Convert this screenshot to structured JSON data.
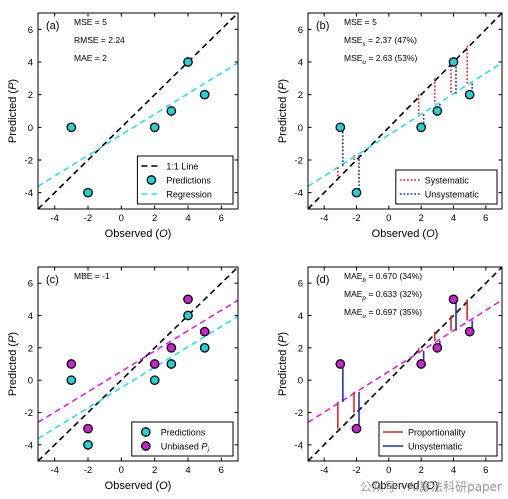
{
  "watermark": "公众号 · AI算法科研paper",
  "chart_data": [
    {
      "type": "scatter",
      "panel_label": "(a)",
      "xlabel": "Observed (O)",
      "ylabel": "Predicted (P)",
      "xlim": [
        -5,
        7
      ],
      "ylim": [
        -5,
        7
      ],
      "xticks": [
        -4,
        -2,
        0,
        2,
        4,
        6
      ],
      "yticks": [
        -4,
        -2,
        0,
        2,
        4,
        6
      ],
      "stats_text": [
        "MSE = 5",
        "RMSE = 2.24",
        "MAE = 2"
      ],
      "points": [
        {
          "name": "Predictions",
          "color": "#1fd4d8",
          "x": [
            -3,
            -2,
            2,
            3,
            4,
            5
          ],
          "y": [
            0,
            -4,
            0,
            1,
            4,
            2
          ]
        }
      ],
      "lines": [
        {
          "name": "1:1 Line",
          "color": "#000000",
          "dash": "dashed",
          "intercept": 0,
          "slope": 1
        },
        {
          "name": "Regression",
          "color": "#20e6e6",
          "dash": "dashed",
          "intercept": -0.46,
          "slope": 0.63
        }
      ],
      "error_segments": [],
      "legend": {
        "position": "bottom-right",
        "entries": [
          {
            "label": "1:1 Line",
            "kind": "line",
            "color": "#000000",
            "dash": "dashed"
          },
          {
            "label": "Predictions",
            "kind": "marker",
            "color": "#1fd4d8"
          },
          {
            "label": "Regression",
            "kind": "line",
            "color": "#20e6e6",
            "dash": "dashed"
          }
        ]
      }
    },
    {
      "type": "scatter",
      "panel_label": "(b)",
      "xlabel": "Observed (O)",
      "ylabel": "Predicted (P)",
      "xlim": [
        -5,
        7
      ],
      "ylim": [
        -5,
        7
      ],
      "xticks": [
        -4,
        -2,
        0,
        2,
        4,
        6
      ],
      "yticks": [
        -4,
        -2,
        0,
        2,
        4,
        6
      ],
      "stats_text": [
        "MSE = 5",
        "MSE_s = 2.37 (47%)",
        "MSE_u = 2.63 (53%)"
      ],
      "points": [
        {
          "name": "Predictions",
          "color": "#1fd4d8",
          "x": [
            -3,
            -2,
            2,
            3,
            4,
            5
          ],
          "y": [
            0,
            -4,
            0,
            1,
            4,
            2
          ]
        }
      ],
      "lines": [
        {
          "name": "1:1 Line",
          "color": "#000000",
          "dash": "dashed",
          "intercept": 0,
          "slope": 1
        },
        {
          "name": "Regression",
          "color": "#20e6e6",
          "dash": "dashed",
          "intercept": -0.46,
          "slope": 0.63
        }
      ],
      "error_segments": [
        {
          "name": "Systematic",
          "color": "#e8251e",
          "style": "dotted",
          "x": [
            -3,
            -2,
            2,
            3,
            4,
            5
          ],
          "y1": [
            -3,
            -2,
            2,
            3,
            4,
            5
          ],
          "y2": [
            -2.35,
            -1.72,
            0.8,
            1.43,
            2.06,
            2.69
          ]
        },
        {
          "name": "Unsystematic",
          "color": "#1f2fc8",
          "style": "dotted",
          "x": [
            -3,
            -2,
            2,
            3,
            4,
            5
          ],
          "y1": [
            -2.35,
            -1.72,
            0.8,
            1.43,
            2.06,
            2.69
          ],
          "y2": [
            0,
            -4,
            0,
            1,
            4,
            2
          ]
        }
      ],
      "legend": {
        "position": "bottom-right",
        "entries": [
          {
            "label": "Systematic",
            "kind": "line",
            "color": "#e8251e",
            "dash": "dotted"
          },
          {
            "label": "Unsystematic",
            "kind": "line",
            "color": "#1f2fc8",
            "dash": "dotted"
          }
        ]
      }
    },
    {
      "type": "scatter",
      "panel_label": "(c)",
      "xlabel": "Observed (O)",
      "ylabel": "Predicted (P)",
      "xlim": [
        -5,
        7
      ],
      "ylim": [
        -5,
        7
      ],
      "xticks": [
        -4,
        -2,
        0,
        2,
        4,
        6
      ],
      "yticks": [
        -4,
        -2,
        0,
        2,
        4,
        6
      ],
      "stats_text": [
        "MBE = -1"
      ],
      "points": [
        {
          "name": "Predictions",
          "color": "#1fd4d8",
          "x": [
            -3,
            -2,
            2,
            3,
            4,
            5
          ],
          "y": [
            0,
            -4,
            0,
            1,
            4,
            2
          ]
        },
        {
          "name": "Unbiased P_i",
          "color": "#d21ed6",
          "x": [
            -3,
            -2,
            2,
            3,
            4,
            5
          ],
          "y": [
            1,
            -3,
            1,
            2,
            5,
            3
          ]
        }
      ],
      "lines": [
        {
          "name": "1:1 Line",
          "color": "#000000",
          "dash": "dashed",
          "intercept": 0,
          "slope": 1
        },
        {
          "name": "Regression",
          "color": "#20e6e6",
          "dash": "dashed",
          "intercept": -0.46,
          "slope": 0.63
        },
        {
          "name": "Unbiased regression",
          "color": "#e61ee6",
          "dash": "dashed",
          "intercept": 0.54,
          "slope": 0.63
        }
      ],
      "error_segments": [],
      "legend": {
        "position": "bottom-right",
        "entries": [
          {
            "label": "Predictions",
            "kind": "marker",
            "color": "#1fd4d8"
          },
          {
            "label": "Unbiased P_i",
            "kind": "marker",
            "color": "#d21ed6"
          }
        ]
      }
    },
    {
      "type": "scatter",
      "panel_label": "(d)",
      "xlabel": "Observed (O)",
      "ylabel": "Predicted (P)",
      "xlim": [
        -5,
        7
      ],
      "ylim": [
        -5,
        7
      ],
      "xticks": [
        -4,
        -2,
        0,
        2,
        4,
        6
      ],
      "yticks": [
        -4,
        -2,
        0,
        2,
        4,
        6
      ],
      "stats_text": [
        "MAE_b = 0.670 (34%)",
        "MAE_p = 0.633 (32%)",
        "MAE_u = 0.697 (35%)"
      ],
      "points": [
        {
          "name": "Unbiased P_i",
          "color": "#d21ed6",
          "x": [
            -3,
            -2,
            2,
            3,
            4,
            5
          ],
          "y": [
            1,
            -3,
            1,
            2,
            5,
            3
          ]
        }
      ],
      "lines": [
        {
          "name": "1:1 Line",
          "color": "#000000",
          "dash": "dashed",
          "intercept": 0,
          "slope": 1
        },
        {
          "name": "Unbiased regression",
          "color": "#e61ee6",
          "dash": "dashed",
          "intercept": 0.54,
          "slope": 0.63
        }
      ],
      "error_segments": [
        {
          "name": "Proportionality",
          "color": "#e8251e",
          "style": "solid",
          "x": [
            -3,
            -2,
            2,
            3,
            4,
            5
          ],
          "y1": [
            -3,
            -2,
            2,
            3,
            4,
            5
          ],
          "y2": [
            -1.35,
            -0.72,
            1.8,
            2.43,
            3.06,
            3.69
          ]
        },
        {
          "name": "Unsystematic",
          "color": "#1f2fc8",
          "style": "solid",
          "x": [
            -3,
            -2,
            2,
            3,
            4,
            5
          ],
          "y1": [
            -1.35,
            -0.72,
            1.8,
            2.43,
            3.06,
            3.69
          ],
          "y2": [
            1,
            -3,
            1,
            2,
            5,
            3
          ]
        }
      ],
      "legend": {
        "position": "bottom-right",
        "entries": [
          {
            "label": "Proportionality",
            "kind": "line",
            "color": "#e8251e",
            "dash": "solid"
          },
          {
            "label": "Unsystematic",
            "kind": "line",
            "color": "#1f2fc8",
            "dash": "solid"
          }
        ]
      }
    }
  ]
}
